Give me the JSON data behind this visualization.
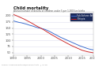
{
  "title": "Child mortality",
  "subtitle": "Annual number of deaths of children under 5 per 1,000 live births",
  "background_color": "#ffffff",
  "plot_bg": "#ffffff",
  "sub_saharan": {
    "label": "Sub-Saharan Africa",
    "color": "#3366cc",
    "years": [
      1990,
      1991,
      1992,
      1993,
      1994,
      1995,
      1996,
      1997,
      1998,
      1999,
      2000,
      2001,
      2002,
      2003,
      2004,
      2005,
      2006,
      2007,
      2008,
      2009,
      2010,
      2011,
      2012,
      2013,
      2014,
      2015,
      2016,
      2017,
      2018,
      2019
    ],
    "values": [
      179,
      176,
      173,
      171,
      168,
      165,
      161,
      158,
      154,
      151,
      149,
      146,
      142,
      137,
      131,
      125,
      119,
      113,
      108,
      103,
      98,
      93,
      88,
      83,
      78,
      74,
      70,
      66,
      63,
      61
    ]
  },
  "ethiopia": {
    "label": "Ethiopia",
    "color": "#cc2222",
    "years": [
      1990,
      1991,
      1992,
      1993,
      1994,
      1995,
      1996,
      1997,
      1998,
      1999,
      2000,
      2001,
      2002,
      2003,
      2004,
      2005,
      2006,
      2007,
      2008,
      2009,
      2010,
      2011,
      2012,
      2013,
      2014,
      2015,
      2016,
      2017,
      2018,
      2019
    ],
    "values": [
      205,
      201,
      196,
      191,
      186,
      180,
      174,
      168,
      161,
      155,
      149,
      143,
      136,
      129,
      122,
      116,
      109,
      103,
      97,
      91,
      85,
      79,
      74,
      69,
      64,
      59,
      56,
      53,
      51,
      49
    ]
  },
  "xlim": [
    1990,
    2019
  ],
  "ylim": [
    40,
    215
  ],
  "xticks": [
    1990,
    1995,
    2000,
    2005,
    2010,
    2015,
    2019
  ],
  "yticks": [
    50,
    75,
    100,
    125,
    150,
    175,
    200
  ],
  "axis_color": "#aaaaaa",
  "grid_color": "#ddddee",
  "text_color": "#555555",
  "title_color": "#111111",
  "legend_bg": "#1a2a5a",
  "legend_text": "#ffffff",
  "legend_blue": "#4466cc",
  "legend_red": "#cc2222"
}
